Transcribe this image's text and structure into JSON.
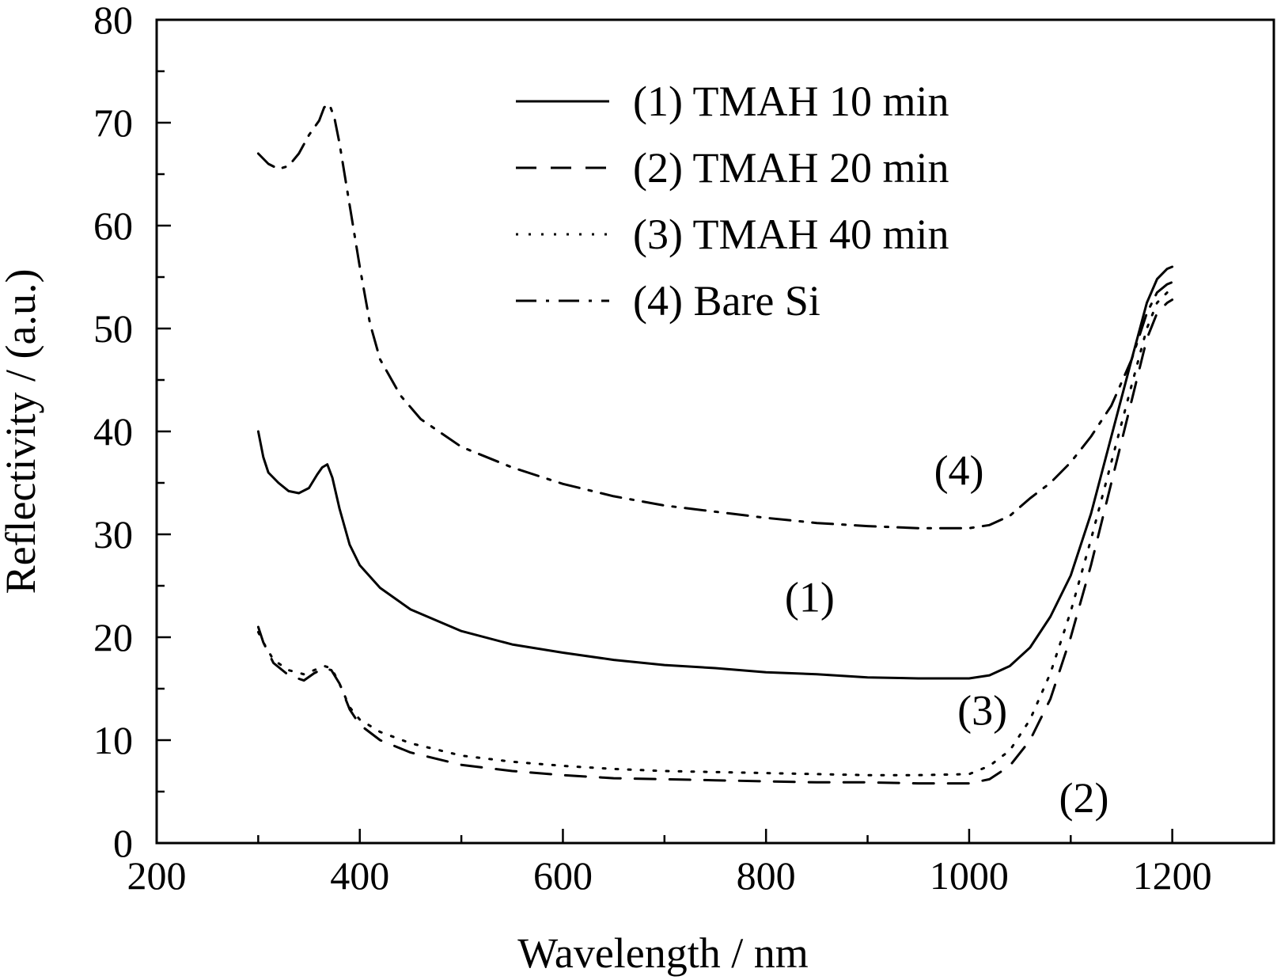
{
  "chart_data": {
    "type": "line",
    "title": "",
    "xlabel": "Wavelength / nm",
    "ylabel": "Reflectivity / (a.u.)",
    "xlim": [
      200,
      1300
    ],
    "ylim": [
      0,
      80
    ],
    "x_ticks": [
      200,
      400,
      600,
      800,
      1000,
      1200
    ],
    "y_ticks": [
      0,
      10,
      20,
      30,
      40,
      50,
      60,
      70,
      80
    ],
    "grid": false,
    "legend_position": "top-center",
    "series": [
      {
        "name": "(1) TMAH 10 min",
        "label": "(1)",
        "dash": "solid",
        "label_at": [
          843,
          22.5
        ],
        "points": [
          [
            300,
            40
          ],
          [
            305,
            37.5
          ],
          [
            310,
            36
          ],
          [
            320,
            35
          ],
          [
            330,
            34.2
          ],
          [
            340,
            34
          ],
          [
            350,
            34.5
          ],
          [
            358,
            35.8
          ],
          [
            363,
            36.5
          ],
          [
            368,
            36.8
          ],
          [
            373,
            35.5
          ],
          [
            380,
            32.5
          ],
          [
            390,
            29
          ],
          [
            400,
            27
          ],
          [
            420,
            24.8
          ],
          [
            450,
            22.7
          ],
          [
            500,
            20.6
          ],
          [
            550,
            19.3
          ],
          [
            600,
            18.5
          ],
          [
            650,
            17.8
          ],
          [
            700,
            17.3
          ],
          [
            750,
            17
          ],
          [
            800,
            16.6
          ],
          [
            850,
            16.4
          ],
          [
            900,
            16.1
          ],
          [
            950,
            16
          ],
          [
            1000,
            16
          ],
          [
            1020,
            16.3
          ],
          [
            1040,
            17.2
          ],
          [
            1060,
            19
          ],
          [
            1080,
            22
          ],
          [
            1100,
            26
          ],
          [
            1120,
            32
          ],
          [
            1140,
            39.5
          ],
          [
            1160,
            47
          ],
          [
            1175,
            52.5
          ],
          [
            1185,
            54.8
          ],
          [
            1195,
            55.8
          ],
          [
            1200,
            56
          ]
        ]
      },
      {
        "name": "(2) TMAH 20 min",
        "label": "(2)",
        "dash": "dashed",
        "label_at": [
          1113,
          3
        ],
        "points": [
          [
            300,
            21
          ],
          [
            305,
            19.5
          ],
          [
            315,
            17.5
          ],
          [
            330,
            16.3
          ],
          [
            345,
            15.8
          ],
          [
            355,
            16.5
          ],
          [
            365,
            17
          ],
          [
            372,
            16.8
          ],
          [
            380,
            15.5
          ],
          [
            390,
            13
          ],
          [
            400,
            11.5
          ],
          [
            420,
            10
          ],
          [
            450,
            8.8
          ],
          [
            500,
            7.6
          ],
          [
            550,
            7
          ],
          [
            600,
            6.6
          ],
          [
            650,
            6.3
          ],
          [
            700,
            6.2
          ],
          [
            750,
            6.1
          ],
          [
            800,
            6
          ],
          [
            850,
            5.9
          ],
          [
            900,
            5.9
          ],
          [
            950,
            5.8
          ],
          [
            1000,
            5.8
          ],
          [
            1020,
            6.2
          ],
          [
            1040,
            7.5
          ],
          [
            1060,
            10
          ],
          [
            1080,
            14
          ],
          [
            1100,
            20
          ],
          [
            1120,
            27
          ],
          [
            1140,
            35
          ],
          [
            1160,
            43
          ],
          [
            1175,
            49
          ],
          [
            1185,
            51.5
          ],
          [
            1195,
            52.5
          ],
          [
            1200,
            52.8
          ]
        ]
      },
      {
        "name": "(3) TMAH 40 min",
        "label": "(3)",
        "dash": "dotted",
        "label_at": [
          1013,
          11.5
        ],
        "points": [
          [
            300,
            20.5
          ],
          [
            305,
            19.5
          ],
          [
            315,
            17.8
          ],
          [
            330,
            16.8
          ],
          [
            345,
            16.4
          ],
          [
            355,
            16.8
          ],
          [
            365,
            17.2
          ],
          [
            372,
            17
          ],
          [
            380,
            15.5
          ],
          [
            390,
            13.2
          ],
          [
            400,
            12
          ],
          [
            420,
            10.8
          ],
          [
            450,
            9.7
          ],
          [
            500,
            8.5
          ],
          [
            550,
            7.9
          ],
          [
            600,
            7.5
          ],
          [
            650,
            7.2
          ],
          [
            700,
            7
          ],
          [
            750,
            6.9
          ],
          [
            800,
            6.8
          ],
          [
            850,
            6.7
          ],
          [
            900,
            6.6
          ],
          [
            950,
            6.6
          ],
          [
            1000,
            6.7
          ],
          [
            1020,
            7.5
          ],
          [
            1040,
            9
          ],
          [
            1060,
            12
          ],
          [
            1080,
            16.5
          ],
          [
            1100,
            22.5
          ],
          [
            1120,
            29.5
          ],
          [
            1140,
            37
          ],
          [
            1160,
            44.5
          ],
          [
            1175,
            50
          ],
          [
            1185,
            52.5
          ],
          [
            1195,
            53.5
          ],
          [
            1200,
            53.7
          ]
        ]
      },
      {
        "name": "(4) Bare Si",
        "label": "(4)",
        "dash": "dash-dot",
        "label_at": [
          990,
          34.8
        ],
        "points": [
          [
            300,
            67
          ],
          [
            310,
            66
          ],
          [
            320,
            65.5
          ],
          [
            330,
            65.8
          ],
          [
            340,
            67
          ],
          [
            350,
            68.8
          ],
          [
            360,
            70.2
          ],
          [
            365,
            71.5
          ],
          [
            370,
            71.8
          ],
          [
            375,
            70.5
          ],
          [
            380,
            68
          ],
          [
            390,
            62
          ],
          [
            400,
            56
          ],
          [
            410,
            50.5
          ],
          [
            420,
            47
          ],
          [
            440,
            43.5
          ],
          [
            460,
            41.2
          ],
          [
            500,
            38.5
          ],
          [
            550,
            36.5
          ],
          [
            600,
            34.9
          ],
          [
            650,
            33.7
          ],
          [
            700,
            32.8
          ],
          [
            750,
            32.2
          ],
          [
            800,
            31.6
          ],
          [
            850,
            31.1
          ],
          [
            900,
            30.8
          ],
          [
            950,
            30.6
          ],
          [
            1000,
            30.6
          ],
          [
            1020,
            30.9
          ],
          [
            1040,
            31.8
          ],
          [
            1060,
            33.5
          ],
          [
            1080,
            35
          ],
          [
            1100,
            37
          ],
          [
            1120,
            39.5
          ],
          [
            1140,
            42.5
          ],
          [
            1160,
            47
          ],
          [
            1175,
            51.5
          ],
          [
            1185,
            53.5
          ],
          [
            1195,
            54.3
          ],
          [
            1200,
            54.5
          ]
        ]
      }
    ]
  }
}
